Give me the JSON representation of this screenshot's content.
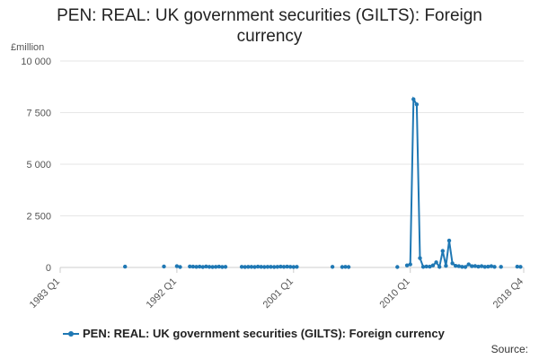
{
  "chart_data": {
    "type": "line",
    "title": "PEN: REAL: UK government securities (GILTS): Foreign currency",
    "unit_label": "£million",
    "source_label": "Source:",
    "ylim": [
      0,
      10000
    ],
    "y_ticks": [
      0,
      2500,
      5000,
      7500,
      10000
    ],
    "y_tick_labels": [
      "0",
      "2 500",
      "5 000",
      "7 500",
      "10 000"
    ],
    "x_start": "1983 Q1",
    "x_end": "2018 Q4",
    "x_tick_labels": [
      "1983 Q1",
      "1992 Q1",
      "2001 Q1",
      "2010 Q1",
      "2018 Q4"
    ],
    "series": [
      {
        "name": "PEN: REAL: UK government securities (GILTS): Foreign currency",
        "color": "#1f78b4",
        "points": [
          [
            "1988 Q1",
            40
          ],
          null,
          [
            "1991 Q1",
            50
          ],
          null,
          [
            "1992 Q1",
            60
          ],
          [
            "1992 Q2",
            20
          ],
          null,
          [
            "1993 Q1",
            50
          ],
          [
            "1993 Q2",
            40
          ],
          [
            "1993 Q3",
            30
          ],
          [
            "1993 Q4",
            40
          ],
          [
            "1994 Q1",
            20
          ],
          [
            "1994 Q2",
            50
          ],
          [
            "1994 Q3",
            30
          ],
          [
            "1994 Q4",
            20
          ],
          [
            "1995 Q1",
            30
          ],
          [
            "1995 Q2",
            40
          ],
          [
            "1995 Q3",
            20
          ],
          [
            "1995 Q4",
            30
          ],
          null,
          [
            "1997 Q1",
            30
          ],
          [
            "1997 Q2",
            20
          ],
          [
            "1997 Q3",
            30
          ],
          [
            "1997 Q4",
            30
          ],
          [
            "1998 Q1",
            20
          ],
          [
            "1998 Q2",
            40
          ],
          [
            "1998 Q3",
            30
          ],
          [
            "1998 Q4",
            20
          ],
          [
            "1999 Q1",
            30
          ],
          [
            "1999 Q2",
            30
          ],
          [
            "1999 Q3",
            20
          ],
          [
            "1999 Q4",
            30
          ],
          [
            "2000 Q1",
            40
          ],
          [
            "2000 Q2",
            30
          ],
          [
            "2000 Q3",
            40
          ],
          [
            "2000 Q4",
            30
          ],
          [
            "2001 Q1",
            20
          ],
          [
            "2001 Q2",
            30
          ],
          null,
          [
            "2004 Q1",
            30
          ],
          null,
          [
            "2004 Q4",
            20
          ],
          [
            "2005 Q1",
            30
          ],
          [
            "2005 Q2",
            20
          ],
          null,
          [
            "2009 Q1",
            20
          ],
          null,
          [
            "2009 Q4",
            100
          ],
          [
            "2010 Q1",
            150
          ],
          [
            "2010 Q2",
            8150
          ],
          [
            "2010 Q3",
            7900
          ],
          [
            "2010 Q4",
            450
          ],
          [
            "2011 Q1",
            30
          ],
          [
            "2011 Q2",
            50
          ],
          [
            "2011 Q3",
            40
          ],
          [
            "2011 Q4",
            100
          ],
          [
            "2012 Q1",
            250
          ],
          [
            "2012 Q2",
            30
          ],
          [
            "2012 Q3",
            800
          ],
          [
            "2012 Q4",
            80
          ],
          [
            "2013 Q1",
            1300
          ],
          [
            "2013 Q2",
            200
          ],
          [
            "2013 Q3",
            80
          ],
          [
            "2013 Q4",
            60
          ],
          [
            "2014 Q1",
            30
          ],
          [
            "2014 Q2",
            20
          ],
          [
            "2014 Q3",
            150
          ],
          [
            "2014 Q4",
            60
          ],
          [
            "2015 Q1",
            70
          ],
          [
            "2015 Q2",
            40
          ],
          [
            "2015 Q3",
            60
          ],
          [
            "2015 Q4",
            30
          ],
          [
            "2016 Q1",
            40
          ],
          [
            "2016 Q2",
            60
          ],
          [
            "2016 Q3",
            30
          ],
          null,
          [
            "2017 Q1",
            30
          ],
          null,
          [
            "2018 Q2",
            40
          ],
          [
            "2018 Q3",
            30
          ]
        ]
      }
    ]
  }
}
